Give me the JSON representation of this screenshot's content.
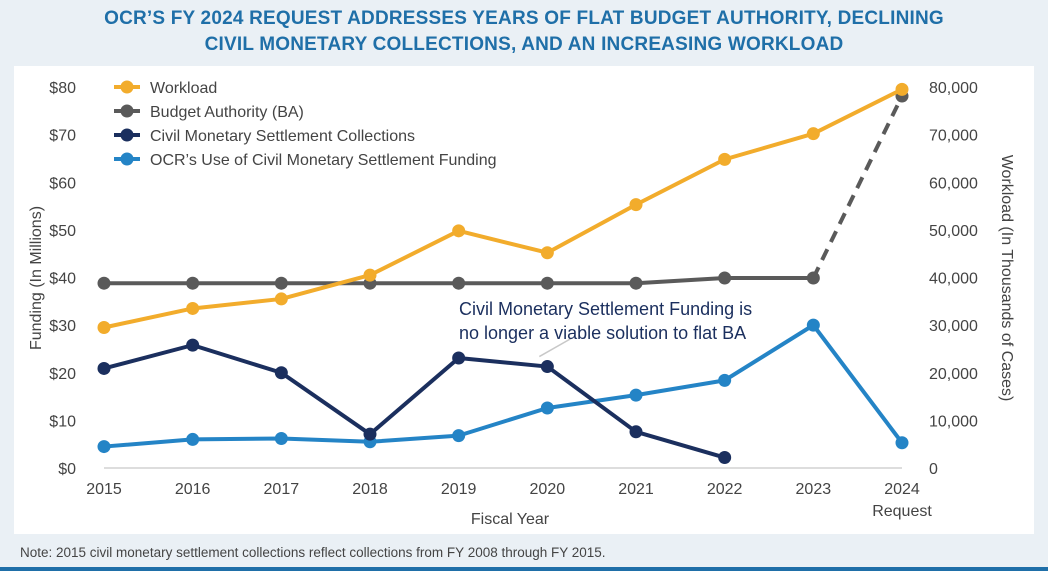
{
  "header": {
    "title_line1": "OCR’S FY 2024 REQUEST ADDRESSES YEARS OF FLAT BUDGET AUTHORITY, DECLINING",
    "title_line2": "CIVIL MONETARY COLLECTIONS, AND AN INCREASING WORKLOAD"
  },
  "note": "Note: 2015 civil monetary settlement collections reflect collections from FY 2008 through FY 2015.",
  "colors": {
    "workload": "#f2ac2c",
    "budget_authority": "#5a5a5a",
    "collections": "#1b2f5e",
    "use_of_funding": "#2484c6",
    "title": "#1f6fa8"
  },
  "chart_data": {
    "type": "line",
    "xlabel": "Fiscal Year",
    "ylabel_left": "Funding (In Millions)",
    "ylabel_right": "Workload (In Thousands of Cases)",
    "categories": [
      "2015",
      "2016",
      "2017",
      "2018",
      "2019",
      "2020",
      "2021",
      "2022",
      "2023",
      "2024"
    ],
    "category_sublabels": [
      "",
      "",
      "",
      "",
      "",
      "",
      "",
      "",
      "",
      "Request"
    ],
    "ylim_left": [
      0,
      80
    ],
    "ylim_right": [
      0,
      80000
    ],
    "left_ticks": [
      "$0",
      "$10",
      "$20",
      "$30",
      "$40",
      "$50",
      "$60",
      "$70",
      "$80"
    ],
    "right_ticks": [
      "0",
      "10,000",
      "20,000",
      "30,000",
      "40,000",
      "50,000",
      "60,000",
      "70,000",
      "80,000"
    ],
    "legend_placement": "top-left",
    "series": [
      {
        "name": "Workload",
        "axis": "right",
        "color": "#f2ac2c",
        "values": [
          29500,
          33500,
          35500,
          40500,
          49800,
          45200,
          55300,
          64800,
          70200,
          79500
        ]
      },
      {
        "name": "Budget Authority (BA)",
        "axis": "left",
        "color": "#5a5a5a",
        "values": [
          38.8,
          38.8,
          38.8,
          38.8,
          38.8,
          38.8,
          38.8,
          39.9,
          39.9,
          78.1
        ],
        "dashed_last_segment": true
      },
      {
        "name": "Civil Monetary Settlement Collections",
        "axis": "left",
        "color": "#1b2f5e",
        "values": [
          20.9,
          25.8,
          20.0,
          7.1,
          23.1,
          21.3,
          7.6,
          2.2,
          null,
          null
        ]
      },
      {
        "name": "OCR’s Use of Civil Monetary Settlement Funding",
        "axis": "left",
        "color": "#2484c6",
        "values": [
          4.5,
          6.0,
          6.2,
          5.5,
          6.8,
          12.6,
          15.3,
          18.4,
          30.0,
          5.3
        ]
      }
    ],
    "annotation": {
      "line1": "Civil Monetary Settlement Funding is",
      "line2": "no longer a viable solution to flat BA",
      "target_series": "Civil Monetary Settlement Collections",
      "target_category": "2020"
    }
  }
}
